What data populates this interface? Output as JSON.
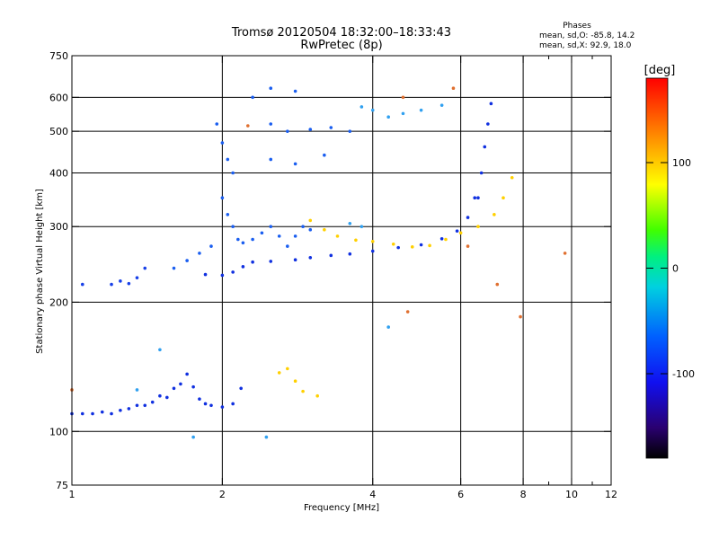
{
  "chart_data": {
    "type": "scatter",
    "title": "Tromsø 20120504 18:32:00–18:33:43",
    "subtitle": "RwPretec (8p)",
    "stats": {
      "heading": "Phases",
      "line1": "mean, sd,O: -85.8, 14.2",
      "line2": "mean, sd,X:  92.9, 18.0"
    },
    "xlabel": "Frequency [MHz]",
    "ylabel": "Stationary phase Virtual Height [km]",
    "x_scale": "log",
    "y_scale": "log",
    "xlim": [
      1,
      12
    ],
    "ylim": [
      75,
      750
    ],
    "x_ticks": [
      1,
      2,
      4,
      6,
      8,
      10,
      12
    ],
    "x_minor_ticks": [
      9,
      11
    ],
    "y_ticks": [
      75,
      100,
      200,
      300,
      400,
      500,
      600,
      750
    ],
    "grid": true,
    "colorbar": {
      "title": "[deg]",
      "range": [
        -180,
        180
      ],
      "ticks": [
        100,
        0,
        -100
      ]
    },
    "series": [
      {
        "color": "#1030e0",
        "values": [
          [
            1.0,
            110
          ],
          [
            1.05,
            110
          ],
          [
            1.1,
            110
          ],
          [
            1.15,
            111
          ],
          [
            1.2,
            110
          ],
          [
            1.25,
            112
          ],
          [
            1.3,
            113
          ],
          [
            1.35,
            115
          ],
          [
            1.4,
            115
          ],
          [
            1.45,
            117
          ],
          [
            1.5,
            121
          ],
          [
            1.55,
            120
          ],
          [
            1.6,
            126
          ],
          [
            1.65,
            129
          ],
          [
            1.7,
            136
          ],
          [
            1.75,
            127
          ],
          [
            1.8,
            119
          ],
          [
            1.85,
            116
          ],
          [
            1.9,
            115
          ],
          [
            2.0,
            114
          ],
          [
            2.1,
            116
          ],
          [
            2.18,
            126
          ]
        ]
      },
      {
        "color": "#1840e8",
        "values": [
          [
            1.05,
            220
          ],
          [
            1.2,
            220
          ],
          [
            1.25,
            224
          ],
          [
            1.3,
            221
          ],
          [
            1.35,
            228
          ],
          [
            1.4,
            240
          ]
        ]
      },
      {
        "color": "#1030e0",
        "values": [
          [
            1.85,
            232
          ],
          [
            2.0,
            231
          ],
          [
            2.1,
            235
          ],
          [
            2.2,
            242
          ],
          [
            2.3,
            248
          ],
          [
            2.5,
            249
          ],
          [
            2.8,
            251
          ],
          [
            3.0,
            254
          ],
          [
            3.3,
            257
          ],
          [
            3.6,
            259
          ],
          [
            4.0,
            263
          ],
          [
            4.5,
            268
          ],
          [
            5.0,
            272
          ],
          [
            5.5,
            281
          ],
          [
            5.9,
            293
          ],
          [
            6.2,
            315
          ],
          [
            6.4,
            350
          ]
        ]
      },
      {
        "color": "#1030e0",
        "values": [
          [
            6.5,
            350
          ],
          [
            6.6,
            400
          ],
          [
            6.7,
            460
          ],
          [
            6.8,
            520
          ],
          [
            6.9,
            580
          ]
        ]
      },
      {
        "color": "#ffd000",
        "values": [
          [
            3.0,
            310
          ],
          [
            3.2,
            295
          ],
          [
            3.4,
            285
          ],
          [
            3.7,
            279
          ],
          [
            4.0,
            277
          ],
          [
            4.4,
            273
          ],
          [
            4.8,
            269
          ],
          [
            5.2,
            271
          ],
          [
            5.6,
            280
          ],
          [
            6.0,
            290
          ],
          [
            6.5,
            300
          ],
          [
            7.0,
            320
          ],
          [
            7.3,
            350
          ],
          [
            7.6,
            390
          ]
        ]
      },
      {
        "color": "#ffd000",
        "values": [
          [
            2.6,
            137
          ],
          [
            2.7,
            140
          ],
          [
            2.8,
            131
          ],
          [
            2.9,
            124
          ],
          [
            3.1,
            121
          ]
        ]
      },
      {
        "color": "#1a5ef0",
        "values": [
          [
            1.95,
            520
          ],
          [
            2.0,
            470
          ],
          [
            2.05,
            430
          ],
          [
            2.1,
            400
          ],
          [
            2.0,
            350
          ],
          [
            2.05,
            320
          ],
          [
            2.1,
            300
          ],
          [
            2.15,
            280
          ],
          [
            2.2,
            275
          ],
          [
            2.3,
            280
          ],
          [
            2.4,
            290
          ],
          [
            2.5,
            300
          ],
          [
            2.6,
            285
          ],
          [
            2.7,
            270
          ],
          [
            2.8,
            285
          ],
          [
            2.9,
            300
          ],
          [
            3.0,
            295
          ],
          [
            2.5,
            520
          ],
          [
            2.7,
            500
          ],
          [
            3.0,
            505
          ],
          [
            3.3,
            510
          ],
          [
            3.6,
            500
          ],
          [
            2.3,
            600
          ],
          [
            2.5,
            630
          ],
          [
            2.8,
            620
          ],
          [
            2.5,
            430
          ],
          [
            2.8,
            420
          ],
          [
            3.2,
            440
          ],
          [
            1.6,
            240
          ],
          [
            1.7,
            250
          ],
          [
            1.8,
            260
          ],
          [
            1.9,
            270
          ]
        ]
      },
      {
        "color": "#30a0f0",
        "values": [
          [
            3.8,
            570
          ],
          [
            4.0,
            560
          ],
          [
            4.3,
            540
          ],
          [
            4.6,
            550
          ],
          [
            5.0,
            560
          ],
          [
            5.5,
            575
          ],
          [
            3.6,
            305
          ],
          [
            3.8,
            300
          ],
          [
            1.5,
            155
          ],
          [
            1.35,
            125
          ],
          [
            1.75,
            97
          ],
          [
            2.45,
            97
          ],
          [
            4.3,
            175
          ]
        ]
      },
      {
        "color": "#e07030",
        "values": [
          [
            5.8,
            630
          ],
          [
            4.6,
            600
          ],
          [
            2.25,
            515
          ],
          [
            1.0,
            125
          ],
          [
            4.7,
            190
          ],
          [
            7.1,
            220
          ],
          [
            7.9,
            185
          ],
          [
            9.7,
            260
          ],
          [
            6.2,
            270
          ]
        ]
      }
    ]
  }
}
